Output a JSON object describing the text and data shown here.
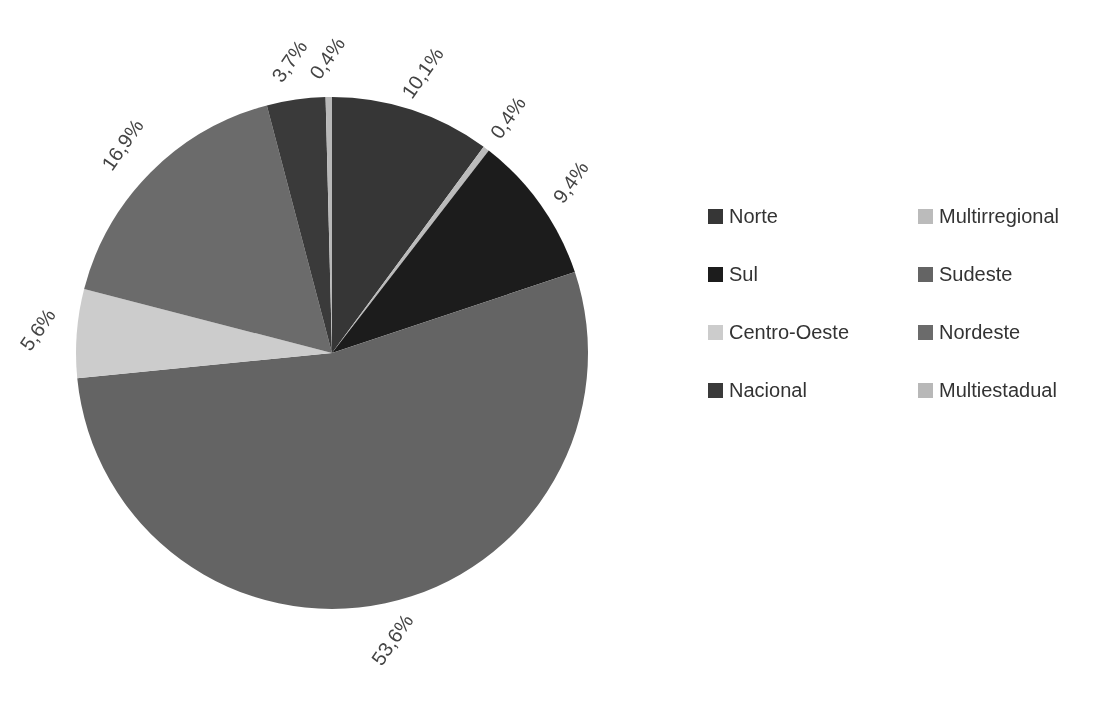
{
  "chart_data": {
    "type": "pie",
    "categories": [
      "Norte",
      "Multirregional",
      "Sul",
      "Sudeste",
      "Centro-Oeste",
      "Nordeste",
      "Nacional",
      "Multiestadual"
    ],
    "values": [
      10.1,
      0.4,
      9.4,
      53.6,
      5.6,
      16.9,
      3.7,
      0.4
    ],
    "colors": [
      "#363636",
      "#bbbbbb",
      "#1c1c1c",
      "#646464",
      "#cccccc",
      "#6b6b6b",
      "#3a3a3a",
      "#b8b8b8"
    ],
    "value_labels": [
      "10,1%",
      "0,4%",
      "9,4%",
      "53,6%",
      "5,6%",
      "16,9%",
      "3,7%",
      "0,4%"
    ],
    "legend": "right"
  }
}
